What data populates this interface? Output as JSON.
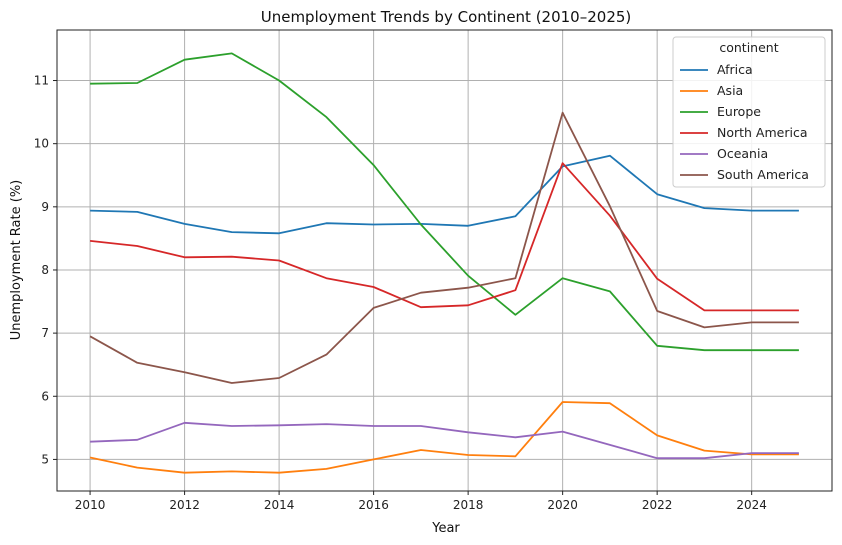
{
  "chart_data": {
    "type": "line",
    "title": "Unemployment Trends by Continent (2010–2025)",
    "xlabel": "Year",
    "ylabel": "Unemployment Rate (%)",
    "xlim": [
      2009.3,
      2025.7
    ],
    "ylim": [
      4.5,
      11.8
    ],
    "xticks": [
      2010,
      2012,
      2014,
      2016,
      2018,
      2020,
      2022,
      2024
    ],
    "yticks": [
      5,
      6,
      7,
      8,
      9,
      10,
      11
    ],
    "grid": true,
    "legend": {
      "title": "continent",
      "placement": "top-right"
    },
    "x": [
      2010,
      2011,
      2012,
      2013,
      2014,
      2015,
      2016,
      2017,
      2018,
      2019,
      2020,
      2021,
      2022,
      2023,
      2024,
      2025
    ],
    "series": [
      {
        "name": "Africa",
        "color": "#1f77b4",
        "values": [
          8.94,
          8.92,
          8.73,
          8.6,
          8.58,
          8.74,
          8.72,
          8.73,
          8.7,
          8.85,
          9.64,
          9.81,
          9.2,
          8.98,
          8.94,
          8.94
        ]
      },
      {
        "name": "Asia",
        "color": "#ff7f0e",
        "values": [
          5.03,
          4.87,
          4.79,
          4.81,
          4.79,
          4.85,
          5.0,
          5.15,
          5.07,
          5.05,
          5.91,
          5.89,
          5.38,
          5.14,
          5.08,
          5.08
        ]
      },
      {
        "name": "Europe",
        "color": "#2ca02c",
        "values": [
          10.95,
          10.96,
          11.33,
          11.43,
          11.0,
          10.42,
          9.66,
          8.72,
          7.91,
          7.29,
          7.87,
          7.66,
          6.8,
          6.73,
          6.73,
          6.73
        ]
      },
      {
        "name": "North America",
        "color": "#d62728",
        "values": [
          8.46,
          8.38,
          8.2,
          8.21,
          8.15,
          7.87,
          7.73,
          7.41,
          7.44,
          7.68,
          9.69,
          8.86,
          7.86,
          7.36,
          7.36,
          7.36
        ]
      },
      {
        "name": "Oceania",
        "color": "#9467bd",
        "values": [
          5.28,
          5.31,
          5.58,
          5.53,
          5.54,
          5.56,
          5.53,
          5.53,
          5.43,
          5.35,
          5.44,
          5.23,
          5.02,
          5.02,
          5.1,
          5.1
        ]
      },
      {
        "name": "South America",
        "color": "#8c564b",
        "values": [
          6.95,
          6.53,
          6.38,
          6.21,
          6.29,
          6.66,
          7.4,
          7.64,
          7.72,
          7.87,
          10.49,
          9.01,
          7.35,
          7.09,
          7.17,
          7.17
        ]
      }
    ]
  }
}
